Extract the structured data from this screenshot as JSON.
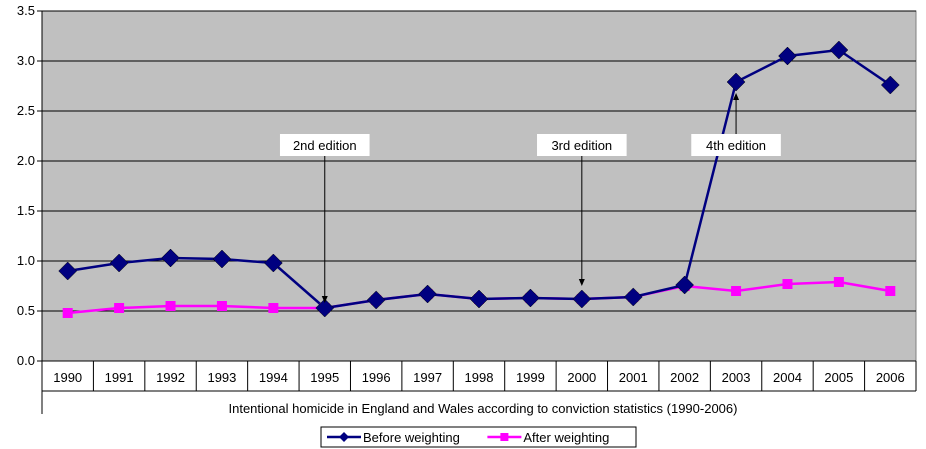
{
  "chart_data": {
    "type": "line",
    "title": "",
    "xlabel": "Intentional homicide in England and Wales according to conviction statistics (1990-2006)",
    "ylabel": "",
    "ylim": [
      0,
      3.5
    ],
    "yticks": [
      "0.0",
      "0.5",
      "1.0",
      "1.5",
      "2.0",
      "2.5",
      "3.0",
      "3.5"
    ],
    "categories": [
      "1990",
      "1991",
      "1992",
      "1993",
      "1994",
      "1995",
      "1996",
      "1997",
      "1998",
      "1999",
      "2000",
      "2001",
      "2002",
      "2003",
      "2004",
      "2005",
      "2006"
    ],
    "grid": true,
    "plot_background": "#c0c0c0",
    "legend_position": "bottom-center",
    "series": [
      {
        "name": "Before weighting",
        "color": "#000080",
        "marker": "diamond",
        "values": [
          0.9,
          0.98,
          1.03,
          1.02,
          0.98,
          0.53,
          0.61,
          0.67,
          0.62,
          0.63,
          0.62,
          0.64,
          0.76,
          2.79,
          3.05,
          3.11,
          2.76
        ]
      },
      {
        "name": "After weighting",
        "color": "#ff00ff",
        "marker": "square",
        "values": [
          0.48,
          0.53,
          0.55,
          0.55,
          0.53,
          0.53,
          0.61,
          0.67,
          0.62,
          0.63,
          0.62,
          0.64,
          0.75,
          0.7,
          0.77,
          0.79,
          0.7
        ]
      }
    ],
    "annotations": [
      {
        "text": "2nd edition",
        "category": "1995",
        "label_y": 2.16,
        "arrow_to_y": 0.58,
        "direction": "down"
      },
      {
        "text": "3rd edition",
        "category": "2000",
        "label_y": 2.16,
        "arrow_to_y": 0.75,
        "direction": "down"
      },
      {
        "text": "4th edition",
        "category": "2003",
        "label_y": 2.16,
        "arrow_to_y": 2.68,
        "direction": "up"
      }
    ]
  }
}
